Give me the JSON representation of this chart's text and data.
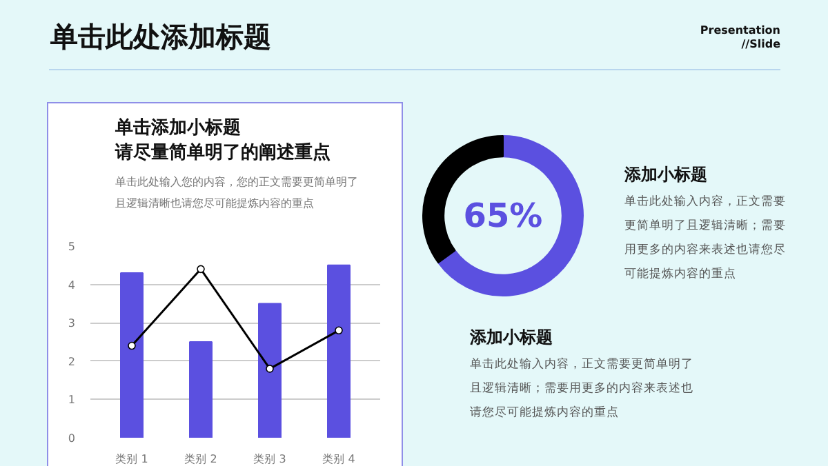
{
  "chart_data": [
    {
      "type": "other",
      "title": "单击此处添加标题",
      "annotations": [
        "Presentation",
        "//Slide"
      ]
    },
    {
      "type": "bar",
      "title": "单击添加小标题",
      "subtitle": "请尽量简单明了的阐述重点",
      "annotations": [
        "单击此处输入您的内容，您的正文需要更简单明了且逻辑清晰也请您尽可能提炼内容的重点"
      ],
      "categories": [
        "类别 1",
        "类别 2",
        "类别 3",
        "类别 4"
      ],
      "ylim": [
        0,
        5
      ],
      "yticks": [
        0,
        1,
        2,
        3,
        4,
        5
      ],
      "grid": "y",
      "series": [
        {
          "color": "#5b50e0",
          "values": [
            4.3,
            2.5,
            3.5,
            4.5
          ]
        },
        {
          "type": "line",
          "color": "#000000",
          "marker": "circle",
          "values": [
            2.4,
            4.4,
            1.8,
            2.8
          ]
        }
      ]
    },
    {
      "type": "donut",
      "categories": [
        null,
        null
      ],
      "values": [
        65,
        35
      ],
      "colors": [
        "#5b50e0",
        "#000000"
      ],
      "annotations": [
        "65%",
        "添加小标题",
        "单击此处输入内容，正文需要更简单明了且逻辑清晰；需要用更多的内容来表述也请您尽可能提炼内容的重点",
        "添加小标题",
        "单击此处输入内容，正文需要更简单明了且逻辑清晰；需要用更多的内容来表述也请您尽可能提炼内容的重点"
      ]
    }
  ]
}
